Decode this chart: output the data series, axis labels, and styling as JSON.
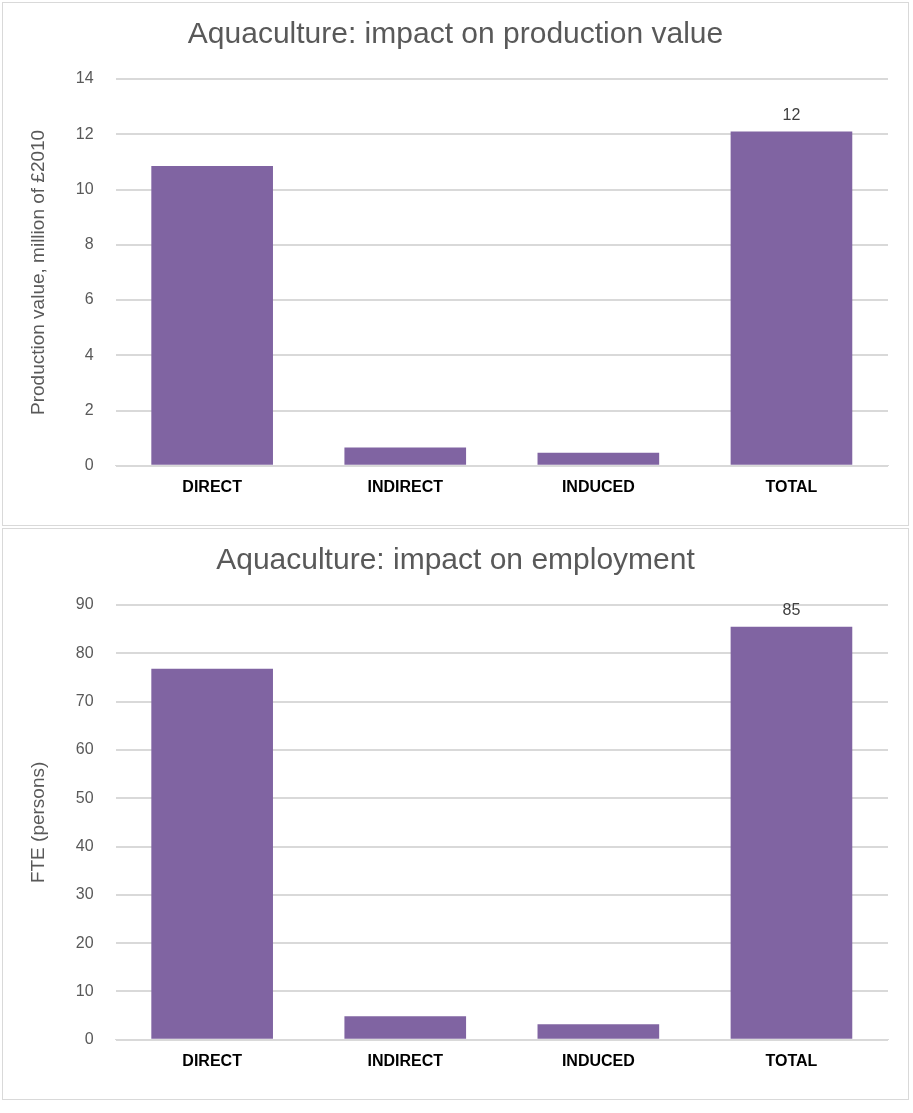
{
  "chart_data": [
    {
      "type": "bar",
      "title": "Aquaculture: impact on production value",
      "ylabel": "Production value, million of £2010",
      "categories": [
        "DIRECT",
        "INDIRECT",
        "INDUCED",
        "TOTAL"
      ],
      "values": [
        10.85,
        0.66,
        0.47,
        12.1
      ],
      "color": "#8064a2",
      "value_labels": [
        null,
        null,
        null,
        "12"
      ],
      "ylim": [
        0,
        14
      ],
      "yticks": [
        0,
        2,
        4,
        6,
        8,
        10,
        12,
        14
      ],
      "grid": "y",
      "legend": false
    },
    {
      "type": "bar",
      "title": "Aquaculture: impact on employment",
      "ylabel": "FTE (persons)",
      "categories": [
        "DIRECT",
        "INDIRECT",
        "INDUCED",
        "TOTAL"
      ],
      "values": [
        76.8,
        4.9,
        3.2,
        85.5
      ],
      "color": "#8064a2",
      "value_labels": [
        null,
        null,
        null,
        "85"
      ],
      "ylim": [
        0,
        90
      ],
      "yticks": [
        0,
        10,
        20,
        30,
        40,
        50,
        60,
        70,
        80,
        90
      ],
      "grid": "y",
      "legend": false
    }
  ]
}
